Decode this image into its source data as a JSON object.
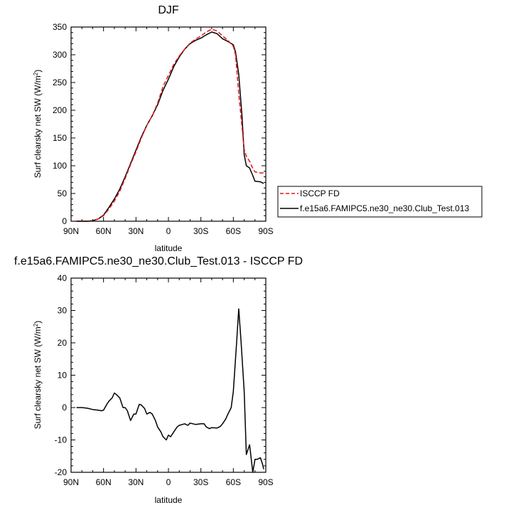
{
  "colors": {
    "model": "#000000",
    "obs": "#e8141e",
    "frame": "#000000"
  },
  "chart_data": [
    {
      "type": "line",
      "title": "DJF",
      "xlabel": "latitude",
      "ylabel": "Surf clearsky net SW (W/m",
      "ylabel_sup": "2",
      "ylabel_close": ")",
      "xlim": [
        90,
        -90
      ],
      "ylim": [
        0,
        350
      ],
      "xticks": [
        90,
        60,
        30,
        0,
        -30,
        -60,
        -90
      ],
      "xtick_labels": [
        "90N",
        "60N",
        "30N",
        "0",
        "30S",
        "60S",
        "90S"
      ],
      "yticks": [
        0,
        50,
        100,
        150,
        200,
        250,
        300,
        350
      ],
      "ytick_labels": [
        "0",
        "50",
        "100",
        "150",
        "200",
        "250",
        "300",
        "350"
      ],
      "legend": {
        "placement": "right"
      },
      "series": [
        {
          "name": "ISCCP FD",
          "style": "dashed",
          "color": "#e8141e",
          "x": [
            85,
            80,
            75,
            70,
            65,
            60,
            55,
            50,
            45,
            40,
            35,
            30,
            25,
            20,
            15,
            10,
            5,
            0,
            -5,
            -10,
            -15,
            -20,
            -25,
            -30,
            -35,
            -40,
            -45,
            -50,
            -55,
            -60,
            -62,
            -65,
            -68,
            -70,
            -72,
            -75,
            -78,
            -80,
            -85,
            -88
          ],
          "y": [
            0,
            0,
            0,
            1,
            4,
            10,
            22,
            36,
            54,
            77,
            102,
            125,
            150,
            173,
            190,
            213,
            243,
            263,
            283,
            298,
            310,
            321,
            328,
            334,
            341,
            346,
            343,
            334,
            326,
            315,
            300,
            230,
            170,
            130,
            117,
            108,
            95,
            89,
            87,
            87
          ]
        },
        {
          "name": "f.e15a6.FAMIPC5.ne30_ne30.Club_Test.013",
          "style": "solid",
          "color": "#000000",
          "x": [
            85,
            80,
            75,
            70,
            65,
            60,
            55,
            50,
            45,
            40,
            35,
            30,
            25,
            20,
            15,
            10,
            5,
            0,
            -5,
            -10,
            -15,
            -20,
            -25,
            -30,
            -35,
            -40,
            -45,
            -50,
            -55,
            -60,
            -62,
            -65,
            -68,
            -70,
            -72,
            -75,
            -78,
            -80,
            -85,
            -88
          ],
          "y": [
            0,
            0,
            0,
            1,
            4,
            11,
            25,
            40,
            58,
            80,
            104,
            128,
            152,
            173,
            190,
            210,
            236,
            256,
            279,
            296,
            310,
            320,
            326,
            330,
            336,
            341,
            338,
            329,
            324,
            318,
            305,
            265,
            190,
            120,
            100,
            96,
            82,
            72,
            71,
            68
          ]
        }
      ]
    },
    {
      "type": "line",
      "title": "f.e15a6.FAMIPC5.ne30_ne30.Club_Test.013 - ISCCP FD",
      "xlabel": "latitude",
      "ylabel": "Surf clearsky net SW (W/m",
      "ylabel_sup": "2",
      "ylabel_close": ")",
      "xlim": [
        90,
        -90
      ],
      "ylim": [
        -20,
        40
      ],
      "xticks": [
        90,
        60,
        30,
        0,
        -30,
        -60,
        -90
      ],
      "xtick_labels": [
        "90N",
        "60N",
        "30N",
        "0",
        "30S",
        "60S",
        "90S"
      ],
      "yticks": [
        -20,
        -10,
        0,
        10,
        20,
        30,
        40
      ],
      "ytick_labels": [
        "-20",
        "-10",
        "0",
        "10",
        "20",
        "30",
        "40"
      ],
      "series": [
        {
          "style": "solid",
          "color": "#000000",
          "x": [
            85,
            80,
            75,
            70,
            65,
            62,
            60,
            57,
            55,
            52,
            50,
            48,
            45,
            42,
            40,
            38,
            35,
            32,
            30,
            27,
            25,
            22,
            20,
            17,
            15,
            12,
            10,
            7,
            5,
            2,
            0,
            -2,
            -5,
            -8,
            -10,
            -15,
            -18,
            -20,
            -25,
            -30,
            -33,
            -35,
            -38,
            -40,
            -45,
            -48,
            -50,
            -53,
            -55,
            -58,
            -60,
            -63,
            -65,
            -67,
            -70,
            -72,
            -75,
            -78,
            -80,
            -82,
            -85,
            -87,
            -88
          ],
          "y": [
            0,
            0,
            -0.2,
            -0.6,
            -0.8,
            -1,
            -0.8,
            1,
            2,
            3,
            4.5,
            4,
            3,
            0,
            0,
            -1,
            -4,
            -2,
            -2,
            1,
            0.8,
            -0.3,
            -2,
            -1.5,
            -2,
            -4,
            -6,
            -7.5,
            -9,
            -10,
            -8.5,
            -9,
            -7.5,
            -6,
            -5.5,
            -5,
            -5.5,
            -4.8,
            -5.2,
            -5,
            -5,
            -6,
            -6.5,
            -6.2,
            -6.3,
            -5.8,
            -5,
            -3.5,
            -2,
            0,
            5,
            20,
            30.5,
            21,
            5,
            -14.5,
            -11.5,
            -20,
            -16,
            -16,
            -15.5,
            -17.5,
            -19
          ]
        }
      ]
    }
  ]
}
